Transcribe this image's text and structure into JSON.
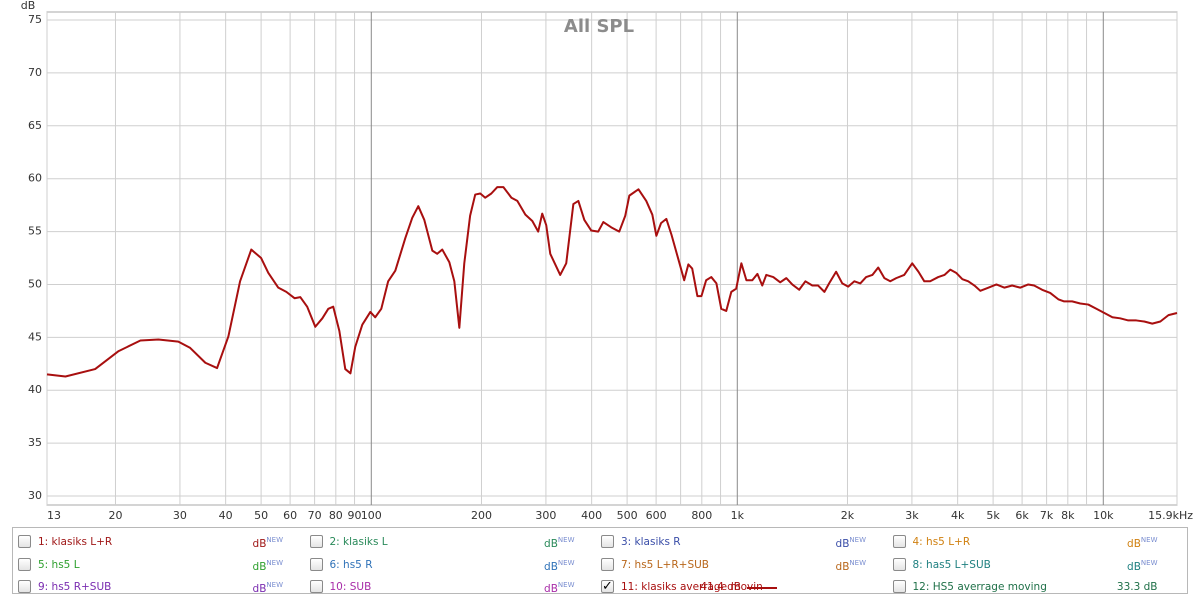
{
  "chart_data": {
    "type": "line",
    "title": "All SPL",
    "y_label": "dB",
    "log_x": true,
    "grid": true,
    "xlim": [
      13,
      15900
    ],
    "ylim": [
      29.15,
      75.76
    ],
    "yticks": [
      30,
      35,
      40,
      45,
      50,
      55,
      60,
      65,
      70,
      75
    ],
    "xticks": [
      13,
      20,
      30,
      40,
      50,
      60,
      70,
      80,
      90,
      100,
      200,
      300,
      400,
      500,
      600,
      {
        "value": 700
      },
      {
        "value": 800,
        "label": "800"
      },
      {
        "value": 900
      },
      {
        "value": 1000,
        "label": "1k"
      },
      {
        "value": 2000,
        "label": "2k"
      },
      {
        "value": 3000,
        "label": "3k"
      },
      {
        "value": 4000,
        "label": "4k"
      },
      {
        "value": 5000,
        "label": "5k"
      },
      {
        "value": 6000,
        "label": "6k"
      },
      {
        "value": 7000,
        "label": "7k"
      },
      {
        "value": 8000,
        "label": "8k"
      },
      {
        "value": 9000
      },
      {
        "value": 10000,
        "label": "10k"
      },
      {
        "value": 15900,
        "label": "15.9kHz"
      }
    ],
    "x": [
      13,
      14.6,
      17.6,
      20.4,
      23.4,
      26.2,
      29.7,
      32,
      35.2,
      37.9,
      40.7,
      43.8,
      47,
      50,
      52.3,
      55.7,
      58.6,
      61.7,
      64,
      66.8,
      70.3,
      73.5,
      76.3,
      78.7,
      81.8,
      84.9,
      87.7,
      90.4,
      94.5,
      99.4,
      102.5,
      106.5,
      111.2,
      116.3,
      123.9,
      129.4,
      134.4,
      139.6,
      146.8,
      151.4,
      156.3,
      163.4,
      168.6,
      174,
      179.5,
      186.2,
      192.3,
      198.5,
      204.8,
      212.8,
      220.8,
      229.6,
      241.5,
      250.6,
      263.6,
      275.4,
      285.8,
      293.1,
      300.6,
      308.3,
      328.2,
      340.9,
      356.5,
      367.9,
      382,
      399,
      416.9,
      430.5,
      452.5,
      475.9,
      494.2,
      507,
      537,
      564,
      586,
      601,
      619,
      640,
      661,
      690,
      716,
      735,
      753,
      778,
      798,
      822,
      849,
      877,
      904,
      933,
      963,
      993,
      1026,
      1059,
      1099,
      1135,
      1170,
      1200,
      1254,
      1310,
      1361,
      1413,
      1476,
      1535,
      1603,
      1663,
      1730,
      1782,
      1862,
      1936,
      2009,
      2089,
      2168,
      2249,
      2339,
      2427,
      2523,
      2618,
      2718,
      2858,
      3006,
      3126,
      3243,
      3365,
      3540,
      3681,
      3819,
      3963,
      4121,
      4276,
      4446,
      4613,
      4853,
      5105,
      5370,
      5636,
      5929,
      6237,
      6471,
      6808,
      7161,
      7534,
      7816,
      8222,
      8650,
      9100,
      9573,
      10070,
      10590,
      11120,
      11700,
      12310,
      12940,
      13610,
      14320,
      15070,
      15900
    ],
    "series": [
      {
        "name": "1: klasiks L+R",
        "color": "#a01818",
        "checked": false,
        "unit": "dB",
        "badge": "NEW"
      },
      {
        "name": "2: klasiks L",
        "color": "#2a8a5a",
        "checked": false,
        "unit": "dB",
        "badge": "NEW"
      },
      {
        "name": "3: klasiks R",
        "color": "#3a4ea8",
        "checked": false,
        "unit": "dB",
        "badge": "NEW"
      },
      {
        "name": "4: hs5 L+R",
        "color": "#d08010",
        "checked": false,
        "unit": "dB",
        "badge": "NEW"
      },
      {
        "name": "5: hs5 L",
        "color": "#2ea02e",
        "checked": false,
        "unit": "dB",
        "badge": "NEW"
      },
      {
        "name": "6: hs5 R",
        "color": "#2f72b8",
        "checked": false,
        "unit": "dB",
        "badge": "NEW"
      },
      {
        "name": "7: hs5 L+R+SUB",
        "color": "#b8661a",
        "checked": false,
        "unit": "dB",
        "badge": "NEW"
      },
      {
        "name": "8: has5 L+SUB",
        "color": "#1f8080",
        "checked": false,
        "unit": "dB",
        "badge": "NEW"
      },
      {
        "name": "9: hs5 R+SUB",
        "color": "#7a2cb0",
        "checked": false,
        "unit": "dB",
        "badge": "NEW"
      },
      {
        "name": "10: SUB",
        "color": "#a82ca8",
        "checked": false,
        "unit": "dB",
        "badge": "NEW"
      },
      {
        "name": "11: klasiks averrage movin",
        "color": "#a80f0f",
        "checked": true,
        "reading": "41.4 dB",
        "values": [
          41.5,
          41.3,
          42.0,
          43.7,
          44.7,
          44.8,
          44.6,
          44.0,
          42.6,
          42.1,
          45.1,
          50.3,
          53.3,
          52.5,
          51.1,
          49.7,
          49.3,
          48.7,
          48.8,
          47.9,
          46.0,
          46.8,
          47.7,
          47.9,
          45.6,
          42.0,
          41.6,
          44.1,
          46.2,
          47.4,
          46.9,
          47.7,
          50.3,
          51.3,
          54.4,
          56.3,
          57.4,
          56.1,
          53.2,
          52.9,
          53.3,
          52.1,
          50.3,
          45.9,
          52.0,
          56.5,
          58.5,
          58.6,
          58.2,
          58.6,
          59.2,
          59.2,
          58.2,
          57.9,
          56.6,
          56.0,
          55.0,
          56.7,
          55.6,
          52.9,
          50.9,
          52.0,
          57.6,
          57.9,
          56.1,
          55.1,
          55.0,
          55.9,
          55.4,
          55.0,
          56.5,
          58.4,
          59.0,
          57.9,
          56.6,
          54.6,
          55.8,
          56.2,
          54.7,
          52.4,
          50.4,
          51.9,
          51.5,
          48.9,
          48.9,
          50.4,
          50.7,
          50.1,
          47.7,
          47.5,
          49.3,
          49.6,
          52.0,
          50.4,
          50.4,
          51.0,
          49.9,
          50.9,
          50.7,
          50.2,
          50.6,
          50.0,
          49.5,
          50.3,
          49.9,
          49.9,
          49.3,
          50.1,
          51.2,
          50.1,
          49.8,
          50.3,
          50.1,
          50.7,
          50.9,
          51.6,
          50.6,
          50.3,
          50.6,
          50.9,
          52.0,
          51.2,
          50.3,
          50.3,
          50.7,
          50.9,
          51.4,
          51.1,
          50.5,
          50.3,
          49.9,
          49.4,
          49.7,
          50.0,
          49.7,
          49.9,
          49.7,
          50.0,
          49.9,
          49.5,
          49.2,
          48.6,
          48.4,
          48.4,
          48.2,
          48.1,
          47.7,
          47.3,
          46.9,
          46.8,
          46.6,
          46.6,
          46.5,
          46.3,
          46.5,
          47.1,
          47.3
        ]
      },
      {
        "name": "12: HS5 averrage moving",
        "color": "#1f7048",
        "checked": false,
        "reading": "33.3 dB"
      }
    ]
  }
}
